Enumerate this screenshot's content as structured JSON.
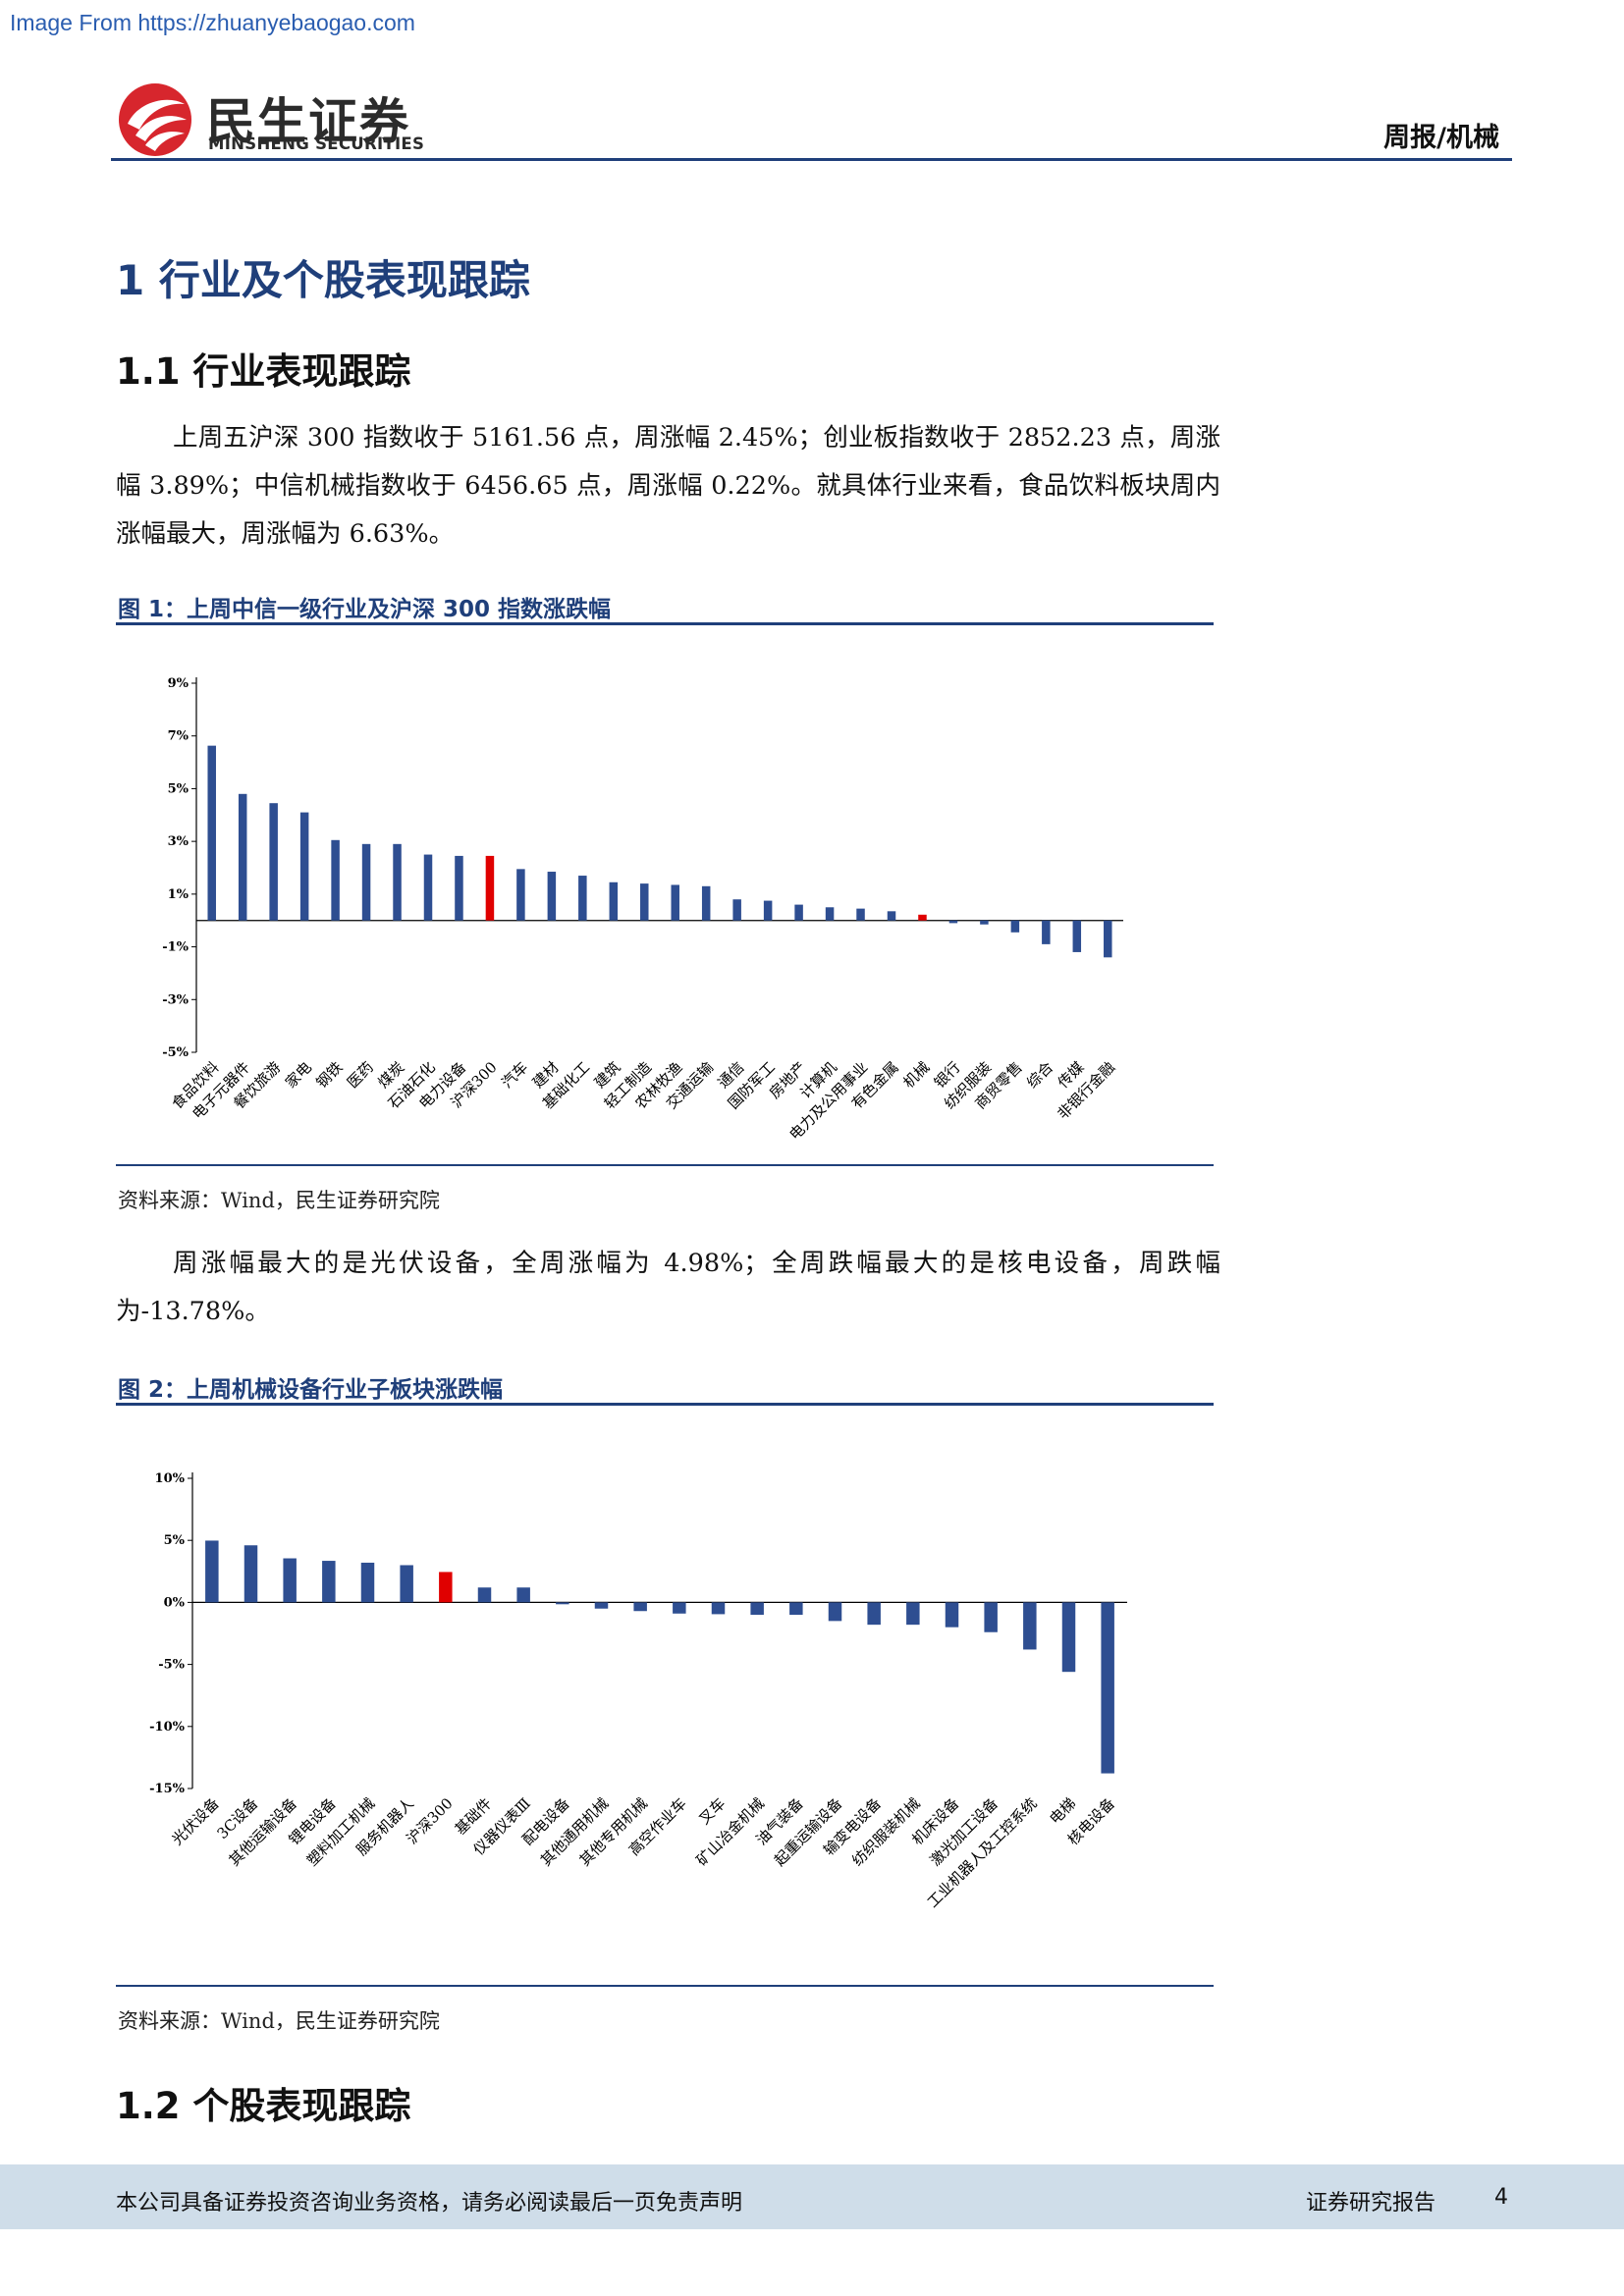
{
  "watermark": "Image From https://zhuanyebaogao.com",
  "header": {
    "logo_cn": "民生证券",
    "logo_en": "MINSHENG SECURITIES",
    "tag": "周报/机械"
  },
  "section": {
    "h1": "1 行业及个股表现跟踪",
    "h1_1": "1.1 行业表现跟踪",
    "para1": "上周五沪深 300 指数收于 5161.56 点，周涨幅 2.45%；创业板指数收于 2852.23 点，周涨幅 3.89%；中信机械指数收于 6456.65 点，周涨幅 0.22%。就具体行业来看，食品饮料板块周内涨幅最大，周涨幅为 6.63%。",
    "fig1_caption": "图 1：上周中信一级行业及沪深 300 指数涨跌幅",
    "fig1_source": "资料来源：Wind，民生证券研究院",
    "para2": "周涨幅最大的是光伏设备，全周涨幅为 4.98%；全周跌幅最大的是核电设备，周跌幅为-13.78%。",
    "fig2_caption": "图 2：上周机械设备行业子板块涨跌幅",
    "fig2_source": "资料来源：Wind，民生证券研究院",
    "h1_2": "1.2 个股表现跟踪"
  },
  "footer": {
    "left": "本公司具备证券投资咨询业务资格，请务必阅读最后一页免责声明",
    "right": "证券研究报告",
    "page": "4"
  },
  "colors": {
    "bar": "#2e4e91",
    "highlight": "#e00000",
    "accent": "#1f3f7a"
  },
  "chart_data": [
    {
      "type": "bar",
      "ylim": [
        -5,
        9
      ],
      "yticks": [
        "9%",
        "7%",
        "5%",
        "3%",
        "1%",
        "-1%",
        "-3%",
        "-5%"
      ],
      "yticks_values": [
        9,
        7,
        5,
        3,
        1,
        -1,
        -3,
        -5
      ],
      "categories": [
        "食品饮料",
        "电子元器件",
        "餐饮旅游",
        "家电",
        "钢铁",
        "医药",
        "煤炭",
        "石油石化",
        "电力设备",
        "沪深300",
        "汽车",
        "建材",
        "基础化工",
        "建筑",
        "轻工制造",
        "农林牧渔",
        "交通运输",
        "通信",
        "国防军工",
        "房地产",
        "计算机",
        "电力及公用事业",
        "有色金属",
        "机械",
        "银行",
        "纺织服装",
        "商贸零售",
        "综合",
        "传媒",
        "非银行金融"
      ],
      "values": [
        6.63,
        4.8,
        4.45,
        4.1,
        3.05,
        2.9,
        2.9,
        2.5,
        2.45,
        2.45,
        1.95,
        1.85,
        1.7,
        1.45,
        1.4,
        1.35,
        1.3,
        0.8,
        0.75,
        0.6,
        0.5,
        0.45,
        0.35,
        0.22,
        -0.1,
        -0.15,
        -0.45,
        -0.9,
        -1.2,
        -1.4
      ],
      "highlight": [
        "沪深300",
        "机械"
      ]
    },
    {
      "type": "bar",
      "ylim": [
        -15,
        10
      ],
      "yticks": [
        "10%",
        "5%",
        "0%",
        "-5%",
        "-10%",
        "-15%"
      ],
      "yticks_values": [
        10,
        5,
        0,
        -5,
        -10,
        -15
      ],
      "categories": [
        "光伏设备",
        "3C设备",
        "其他运输设备",
        "锂电设备",
        "塑料加工机械",
        "服务机器人",
        "沪深300",
        "基础件",
        "仪器仪表Ⅲ",
        "配电设备",
        "其他通用机械",
        "其他专用机械",
        "高空作业车",
        "叉车",
        "矿山冶金机械",
        "油气装备",
        "起重运输设备",
        "输变电设备",
        "纺织服装机械",
        "机床设备",
        "激光加工设备",
        "工业机器人及工控系统",
        "电梯",
        "核电设备"
      ],
      "values": [
        4.98,
        4.6,
        3.55,
        3.35,
        3.2,
        3.0,
        2.45,
        1.2,
        1.2,
        -0.15,
        -0.5,
        -0.7,
        -0.9,
        -0.95,
        -1.0,
        -1.0,
        -1.5,
        -1.8,
        -1.8,
        -2.0,
        -2.4,
        -3.8,
        -5.6,
        -13.78
      ],
      "highlight": [
        "沪深300"
      ]
    }
  ]
}
